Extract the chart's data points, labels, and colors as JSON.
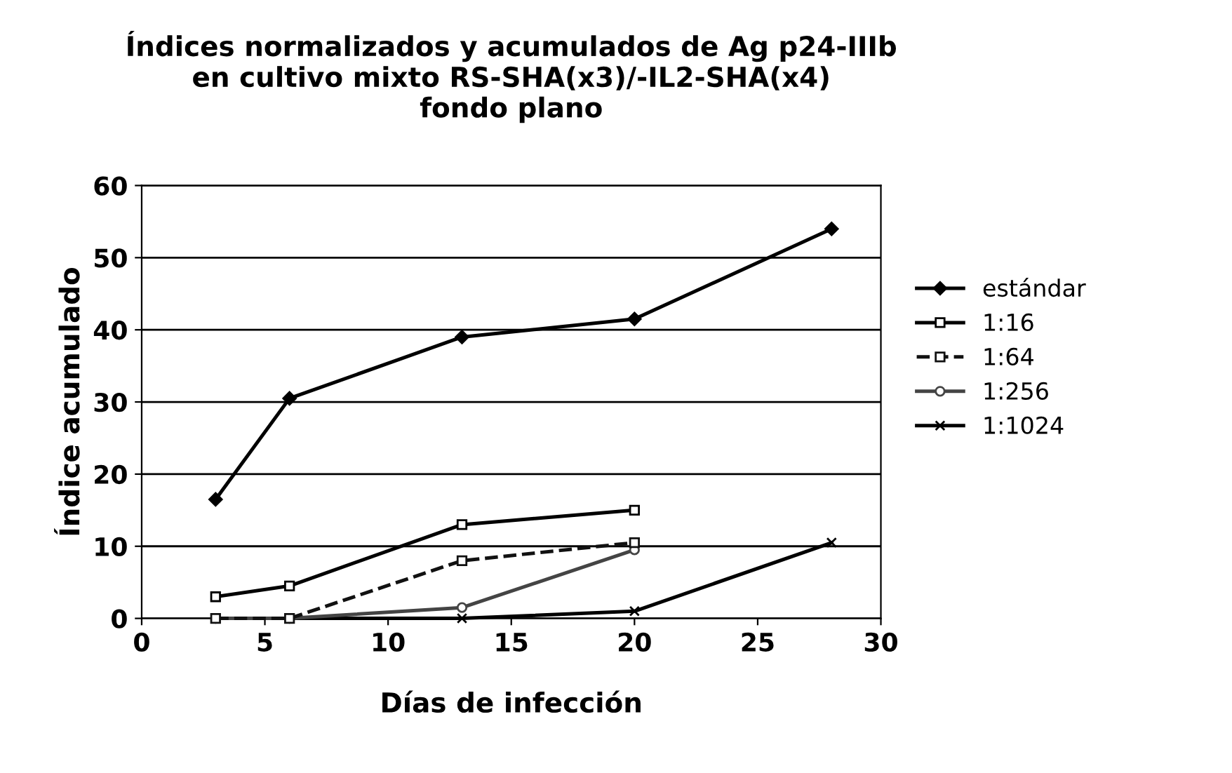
{
  "chart_data": {
    "type": "line",
    "title": "Índices normalizados y acumulados de Ag p24-IIIb\nen cultivo mixto RS-SHA(x3)/-IL2-SHA(x4)\nfondo plano",
    "xlabel": "Días de infección",
    "ylabel": "Índice acumulado",
    "xlim": [
      0,
      30
    ],
    "xticks": [
      0,
      5,
      10,
      15,
      20,
      25,
      30
    ],
    "ylim": [
      0,
      60
    ],
    "yticks": [
      0,
      10,
      20,
      30,
      40,
      50,
      60
    ],
    "grid": "y",
    "legend": "right",
    "series": [
      {
        "name": "estándar",
        "color": "#000000",
        "marker": "diamond",
        "line_style": "solid",
        "x": [
          3,
          6,
          13,
          20,
          28
        ],
        "values": [
          16.5,
          30.5,
          39,
          41.5,
          54
        ]
      },
      {
        "name": "1:16",
        "color": "#000000",
        "marker": "square",
        "line_style": "solid",
        "x": [
          3,
          6,
          13,
          20
        ],
        "values": [
          3,
          4.5,
          13,
          15
        ]
      },
      {
        "name": "1:64",
        "color": "#111111",
        "marker": "square",
        "line_style": "dashed",
        "x": [
          3,
          6,
          13,
          20
        ],
        "values": [
          0,
          0,
          8,
          10.5
        ]
      },
      {
        "name": "1:256",
        "color": "#444444",
        "marker": "circle",
        "line_style": "solid",
        "x": [
          3,
          6,
          13,
          20
        ],
        "values": [
          0,
          0,
          1.5,
          9.5
        ]
      },
      {
        "name": "1:1024",
        "color": "#000000",
        "marker": "cross",
        "line_style": "solid",
        "x": [
          3,
          6,
          13,
          20,
          28
        ],
        "values": [
          0,
          0,
          0,
          1,
          10.5
        ]
      }
    ]
  }
}
